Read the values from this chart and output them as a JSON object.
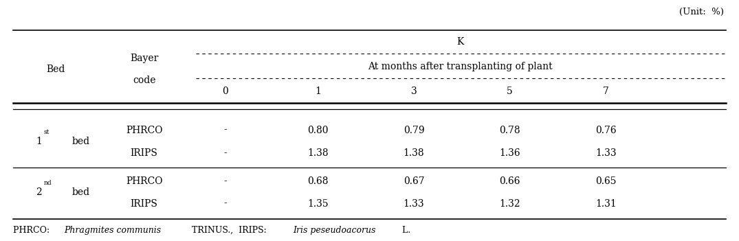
{
  "unit_text": "(Unit:  %)",
  "col_header_main": "K",
  "col_header_sub": "At months after transplanting of plant",
  "col_months": [
    "0",
    "1",
    "3",
    "5",
    "7"
  ],
  "bed_col_header": "Bed",
  "bayer_col_header_line1": "Bayer",
  "bayer_col_header_line2": "code",
  "rows": [
    {
      "bed": "1",
      "bed_sup": "st",
      "bayer": "PHRCO",
      "vals": [
        "-",
        "0.80",
        "0.79",
        "0.78",
        "0.76"
      ]
    },
    {
      "bed": "1",
      "bed_sup": "st",
      "bayer": "IRIPS",
      "vals": [
        "-",
        "1.38",
        "1.38",
        "1.36",
        "1.33"
      ]
    },
    {
      "bed": "2",
      "bed_sup": "nd",
      "bayer": "PHRCO",
      "vals": [
        "-",
        "0.68",
        "0.67",
        "0.66",
        "0.65"
      ]
    },
    {
      "bed": "2",
      "bed_sup": "nd",
      "bayer": "IRIPS",
      "vals": [
        "-",
        "1.35",
        "1.33",
        "1.32",
        "1.31"
      ]
    }
  ],
  "footnote_parts": [
    {
      "text": "PHRCO: ",
      "italic": false
    },
    {
      "text": "Phragmites communis",
      "italic": true
    },
    {
      "text": " TRINUS.,  IRIPS: ",
      "italic": false
    },
    {
      "text": "Iris peseudoacorus",
      "italic": true
    },
    {
      "text": " L.",
      "italic": false
    }
  ],
  "bg_color": "#ffffff",
  "text_color": "#000000",
  "fontsize": 10,
  "footnote_fontsize": 9
}
